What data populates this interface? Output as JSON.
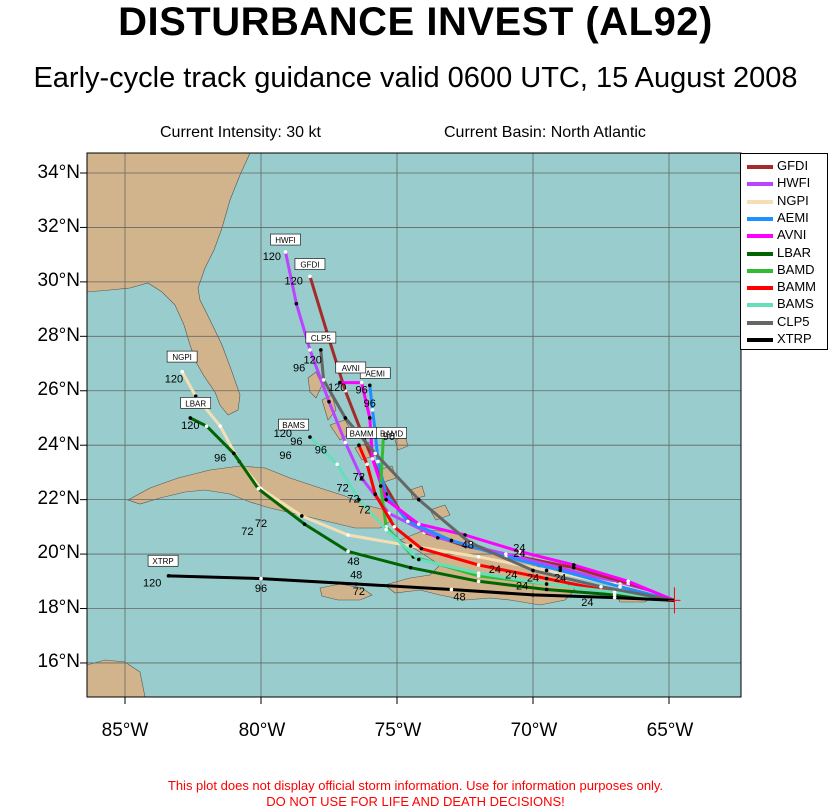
{
  "title": "DISTURBANCE INVEST (AL92)",
  "subtitle": "Early-cycle track guidance valid 0600 UTC, 15 August 2008",
  "current_intensity": "Current Intensity: 30 kt",
  "current_basin": "Current Basin: North Atlantic",
  "disclaimer_line1": "This plot does not display official storm information. Use for information purposes only.",
  "disclaimer_line2": "DO NOT USE FOR LIFE AND DEATH DECISIONS!",
  "colors": {
    "ocean": "#99cccc",
    "land": "#d2b48c",
    "grid": "#666666",
    "disclaimer": "#ff0000"
  },
  "lat_labels": [
    "34°N",
    "32°N",
    "30°N",
    "28°N",
    "26°N",
    "24°N",
    "22°N",
    "20°N",
    "18°N",
    "16°N"
  ],
  "lon_labels": [
    "85°W",
    "80°W",
    "75°W",
    "70°W",
    "65°W"
  ],
  "storm_position": {
    "lon": -64.8,
    "lat": 18.3
  },
  "models": [
    {
      "name": "GFDI",
      "color": "#a52a2a",
      "track": [
        [
          -64.8,
          18.3
        ],
        [
          -66.5,
          18.9
        ],
        [
          -68.5,
          19.5
        ],
        [
          -70.5,
          19.9
        ],
        [
          -72.5,
          20.3
        ],
        [
          -74,
          20.8
        ],
        [
          -74.9,
          21.6
        ],
        [
          -75.6,
          22.8
        ],
        [
          -76.2,
          24.2
        ],
        [
          -76.9,
          26
        ],
        [
          -77.5,
          27.9
        ],
        [
          -78.2,
          30.2
        ]
      ],
      "labels": [
        {
          "text": "24",
          "lon": -70.5,
          "lat": 19.9
        },
        {
          "text": "120",
          "lon": -78.8,
          "lat": 29.9
        }
      ],
      "tag": {
        "lon": -78.2,
        "lat": 30.6
      }
    },
    {
      "name": "HWFI",
      "color": "#bb44ff",
      "track": [
        [
          -64.8,
          18.3
        ],
        [
          -66.8,
          18.9
        ],
        [
          -69,
          19.5
        ],
        [
          -71,
          20
        ],
        [
          -73.5,
          20.6
        ],
        [
          -75.3,
          21.5
        ],
        [
          -76.3,
          22.8
        ],
        [
          -76.9,
          24.1
        ],
        [
          -77.5,
          25.6
        ],
        [
          -78.2,
          27.5
        ],
        [
          -78.7,
          29.2
        ],
        [
          -79.1,
          31.1
        ]
      ],
      "labels": [
        {
          "text": "120",
          "lon": -79.6,
          "lat": 30.8
        }
      ],
      "tag": {
        "lon": -79.1,
        "lat": 31.5
      }
    },
    {
      "name": "NGPI",
      "color": "#f5deb3",
      "track": [
        [
          -64.8,
          18.3
        ],
        [
          -67,
          18.9
        ],
        [
          -69.5,
          19.4
        ],
        [
          -72,
          19.9
        ],
        [
          -74.5,
          20.3
        ],
        [
          -76.8,
          20.7
        ],
        [
          -78.5,
          21.4
        ],
        [
          -80,
          22.4
        ],
        [
          -80.8,
          23.4
        ],
        [
          -81.5,
          24.7
        ],
        [
          -82.4,
          25.8
        ],
        [
          -82.9,
          26.7
        ]
      ],
      "labels": [
        {
          "text": "120",
          "lon": -83.2,
          "lat": 26.3
        }
      ],
      "tag": {
        "lon": -82.9,
        "lat": 27.2
      }
    },
    {
      "name": "AEMI",
      "color": "#1e90ff",
      "track": [
        [
          -64.8,
          18.3
        ],
        [
          -66.8,
          18.8
        ],
        [
          -69,
          19.4
        ],
        [
          -71,
          19.9
        ],
        [
          -73,
          20.5
        ],
        [
          -74.6,
          21.2
        ],
        [
          -75.4,
          22.2
        ],
        [
          -75.7,
          23.4
        ],
        [
          -75.8,
          24.5
        ],
        [
          -75.9,
          25.3
        ],
        [
          -76,
          26.2
        ]
      ],
      "labels": [
        {
          "text": "96",
          "lon": -76.3,
          "lat": 25.9
        }
      ],
      "tag": {
        "lon": -75.8,
        "lat": 26.6
      }
    },
    {
      "name": "AVNI",
      "color": "#ff00ff",
      "track": [
        [
          -64.8,
          18.3
        ],
        [
          -66.5,
          19
        ],
        [
          -68.5,
          19.6
        ],
        [
          -70.5,
          20.1
        ],
        [
          -72.5,
          20.7
        ],
        [
          -74.2,
          21.1
        ],
        [
          -75.4,
          22
        ],
        [
          -75.9,
          23.5
        ],
        [
          -76,
          25
        ],
        [
          -76.3,
          26.3
        ],
        [
          -77.1,
          26.3
        ]
      ],
      "labels": [
        {
          "text": "24",
          "lon": -70.5,
          "lat": 20.1
        },
        {
          "text": "120",
          "lon": -77.2,
          "lat": 26.0
        }
      ],
      "tag": {
        "lon": -76.7,
        "lat": 26.8
      }
    },
    {
      "name": "LBAR",
      "color": "#006400",
      "track": [
        [
          -64.8,
          18.3
        ],
        [
          -67,
          18.5
        ],
        [
          -69.5,
          18.7
        ],
        [
          -72,
          19
        ],
        [
          -74.5,
          19.5
        ],
        [
          -76.8,
          20.1
        ],
        [
          -78.4,
          21.1
        ],
        [
          -80.1,
          22.4
        ],
        [
          -81,
          23.7
        ],
        [
          -82,
          24.7
        ],
        [
          -82.6,
          25
        ]
      ],
      "labels": [
        {
          "text": "96",
          "lon": -81.5,
          "lat": 23.4
        },
        {
          "text": "120",
          "lon": -82.6,
          "lat": 24.6
        }
      ],
      "tag": {
        "lon": -82.4,
        "lat": 25.5
      }
    },
    {
      "name": "BAMD",
      "color": "#33bb33",
      "track": [
        [
          -64.8,
          18.3
        ],
        [
          -67,
          18.6
        ],
        [
          -69.5,
          18.9
        ],
        [
          -72,
          19.2
        ],
        [
          -74.4,
          19.9
        ],
        [
          -75.4,
          21
        ],
        [
          -75.6,
          22.5
        ],
        [
          -75.5,
          24.3
        ]
      ],
      "labels": [
        {
          "text": "96",
          "lon": -75.3,
          "lat": 24.2
        }
      ],
      "tag": {
        "lon": -75.2,
        "lat": 24.4
      }
    },
    {
      "name": "BAMM",
      "color": "#ff0000",
      "track": [
        [
          -64.8,
          18.3
        ],
        [
          -67,
          18.6
        ],
        [
          -69.5,
          19.1
        ],
        [
          -72,
          19.6
        ],
        [
          -74.1,
          20.2
        ],
        [
          -75.1,
          21
        ],
        [
          -75.8,
          22.2
        ],
        [
          -76.1,
          23.3
        ],
        [
          -76.4,
          24
        ]
      ],
      "labels": [
        {
          "text": "72",
          "lon": -76.4,
          "lat": 22.7
        }
      ],
      "tag": {
        "lon": -76.3,
        "lat": 24.4
      }
    },
    {
      "name": "BAMS",
      "color": "#66ddbb",
      "track": [
        [
          -64.8,
          18.3
        ],
        [
          -67,
          18.6
        ],
        [
          -69.5,
          18.9
        ],
        [
          -72,
          19.3
        ],
        [
          -74.2,
          19.8
        ],
        [
          -75.4,
          20.9
        ],
        [
          -76.4,
          22
        ],
        [
          -77.2,
          23.3
        ],
        [
          -78.2,
          24.3
        ]
      ],
      "labels": [
        {
          "text": "96",
          "lon": -78.7,
          "lat": 24
        },
        {
          "text": "120",
          "lon": -79.2,
          "lat": 24.3
        }
      ],
      "tag": {
        "lon": -78.8,
        "lat": 24.7
      }
    },
    {
      "name": "CLP5",
      "color": "#666666",
      "track": [
        [
          -64.8,
          18.3
        ],
        [
          -67.5,
          18.8
        ],
        [
          -70,
          19.4
        ],
        [
          -72.3,
          20.4
        ],
        [
          -74.2,
          22
        ],
        [
          -75.8,
          23.7
        ],
        [
          -76.9,
          25
        ],
        [
          -77.7,
          26.4
        ],
        [
          -77.8,
          27.5
        ]
      ],
      "labels": [
        {
          "text": "96",
          "lon": -78.6,
          "lat": 26.7
        },
        {
          "text": "120",
          "lon": -78.1,
          "lat": 27.0
        }
      ],
      "tag": {
        "lon": -77.8,
        "lat": 27.9
      }
    },
    {
      "name": "XTRP",
      "color": "#000000",
      "track": [
        [
          -64.8,
          18.3
        ],
        [
          -67,
          18.4
        ],
        [
          -70,
          18.5
        ],
        [
          -73,
          18.7
        ],
        [
          -76.5,
          18.9
        ],
        [
          -80,
          19.1
        ],
        [
          -83.4,
          19.2
        ]
      ],
      "labels": [
        {
          "text": "24",
          "lon": -68,
          "lat": 18.1
        },
        {
          "text": "48",
          "lon": -72.7,
          "lat": 18.3
        },
        {
          "text": "72",
          "lon": -76.4,
          "lat": 18.5
        },
        {
          "text": "96",
          "lon": -80,
          "lat": 18.6
        },
        {
          "text": "120",
          "lon": -84,
          "lat": 18.8
        }
      ],
      "tag": {
        "lon": -83.6,
        "lat": 19.7
      }
    }
  ],
  "hour_labels": [
    {
      "text": "24",
      "lon": -70.8,
      "lat": 19.1
    },
    {
      "text": "24",
      "lon": -69,
      "lat": 19.0
    },
    {
      "text": "24",
      "lon": -70.4,
      "lat": 18.7
    },
    {
      "text": "48",
      "lon": -72.4,
      "lat": 20.2
    },
    {
      "text": "48",
      "lon": -76.6,
      "lat": 19.6
    },
    {
      "text": "48",
      "lon": -76.5,
      "lat": 19.1
    },
    {
      "text": "24",
      "lon": -71.4,
      "lat": 19.3
    },
    {
      "text": "24",
      "lon": -70.0,
      "lat": 19.0
    },
    {
      "text": "72",
      "lon": -80,
      "lat": 21.0
    },
    {
      "text": "72",
      "lon": -80.5,
      "lat": 20.7
    },
    {
      "text": "96",
      "lon": -79.1,
      "lat": 23.5
    },
    {
      "text": "72",
      "lon": -77,
      "lat": 22.3
    },
    {
      "text": "72",
      "lon": -76.6,
      "lat": 21.9
    },
    {
      "text": "72",
      "lon": -76.2,
      "lat": 21.5
    },
    {
      "text": "96",
      "lon": -77.8,
      "lat": 23.7
    },
    {
      "text": "96",
      "lon": -76,
      "lat": 25.4
    }
  ]
}
